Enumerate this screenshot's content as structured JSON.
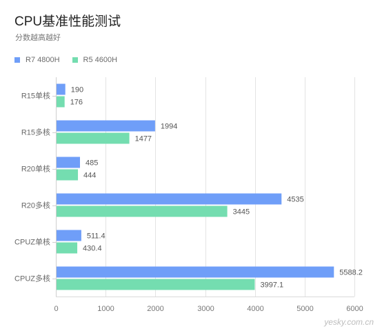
{
  "header": {
    "title": "CPU基准性能测试",
    "subtitle": "分数越高越好"
  },
  "watermark": "yesky.com.cn",
  "chart_data": {
    "type": "bar",
    "orientation": "horizontal",
    "title": "CPU基准性能测试",
    "subtitle": "分数越高越好",
    "categories": [
      "R15单核",
      "R15多核",
      "R20单核",
      "R20多核",
      "CPUZ单核",
      "CPUZ多核"
    ],
    "series": [
      {
        "name": "R7 4800H",
        "color": "#6f9ef8",
        "values": [
          190,
          1994,
          485,
          4535,
          511.4,
          5588.2
        ],
        "labels": [
          "190",
          "1994",
          "485",
          "4535",
          "511.4",
          "5588.2"
        ]
      },
      {
        "name": "R5 4600H",
        "color": "#74ddb0",
        "values": [
          176,
          1477,
          444,
          3445,
          430.4,
          3997.1
        ],
        "labels": [
          "176",
          "1477",
          "444",
          "3445",
          "430.4",
          "3997.1"
        ]
      }
    ],
    "xlim": [
      0,
      6000
    ],
    "xticks": [
      "0",
      "1000",
      "2000",
      "3000",
      "4000",
      "5000",
      "6000"
    ],
    "grid": "vertical",
    "legend_position": "top-left"
  }
}
